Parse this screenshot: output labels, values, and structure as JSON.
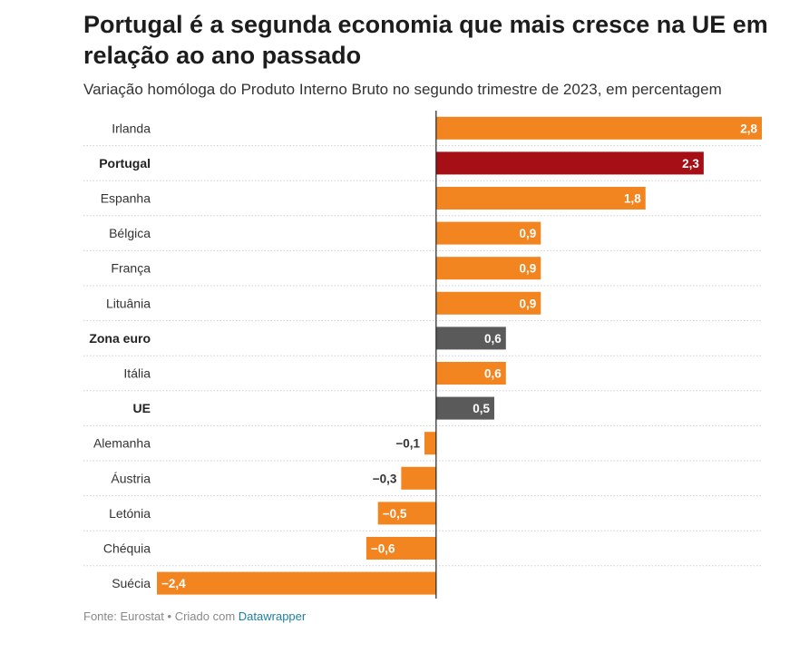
{
  "title": "Portugal é a segunda economia que mais cresce na UE em relação ao ano passado",
  "subtitle": "Variação homóloga do Produto Interno Bruto no segundo trimestre de 2023, em percentagem",
  "footer": {
    "source": "Fonte: Eurostat",
    "separator": "•",
    "created_with": "Criado com",
    "tool": "Datawrapper"
  },
  "colors": {
    "default": "#f28520",
    "highlight": "#a50f15",
    "aggregate": "#5a5a5a"
  },
  "chart_data": {
    "type": "bar",
    "orientation": "horizontal",
    "title": "Portugal é a segunda economia que mais cresce na UE em relação ao ano passado",
    "subtitle": "Variação homóloga do Produto Interno Bruto no segundo trimestre de 2023, em percentagem",
    "xlim": [
      -2.4,
      2.8
    ],
    "grid": false,
    "categories": [
      "Irlanda",
      "Portugal",
      "Espanha",
      "Bélgica",
      "França",
      "Lituânia",
      "Zona euro",
      "Itália",
      "UE",
      "Alemanha",
      "Áustria",
      "Letónia",
      "Chéquia",
      "Suécia"
    ],
    "values": [
      2.8,
      2.3,
      1.8,
      0.9,
      0.9,
      0.9,
      0.6,
      0.6,
      0.5,
      -0.1,
      -0.3,
      -0.5,
      -0.6,
      -2.4
    ],
    "value_labels": [
      "2,8",
      "2,3",
      "1,8",
      "0,9",
      "0,9",
      "0,9",
      "0,6",
      "0,6",
      "0,5",
      "−0,1",
      "−0,3",
      "−0,5",
      "−0,6",
      "−2,4"
    ],
    "bar_color": [
      "default",
      "highlight",
      "default",
      "default",
      "default",
      "default",
      "aggregate",
      "default",
      "aggregate",
      "default",
      "default",
      "default",
      "default",
      "default"
    ],
    "bold_label": [
      false,
      true,
      false,
      false,
      false,
      false,
      true,
      false,
      true,
      false,
      false,
      false,
      false,
      false
    ]
  }
}
